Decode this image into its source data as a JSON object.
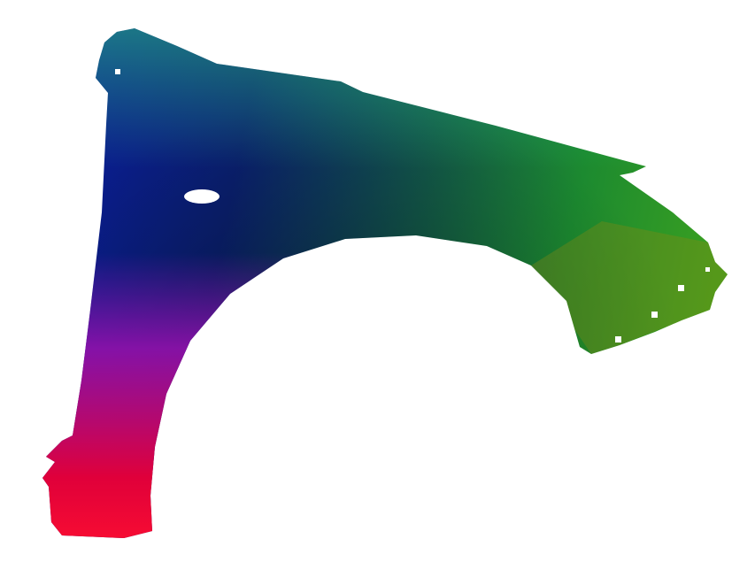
{
  "image": {
    "subject_icon": "car-fender",
    "colors": {
      "background": "#ffffff",
      "top_left": "#0a1aa0",
      "center": "#0d2a4a",
      "right": "#1fa040",
      "right_tip": "#30d070",
      "bottom": "#f00030",
      "mid_left": "#8010b0",
      "right_bottom": "#6a7a10"
    }
  }
}
